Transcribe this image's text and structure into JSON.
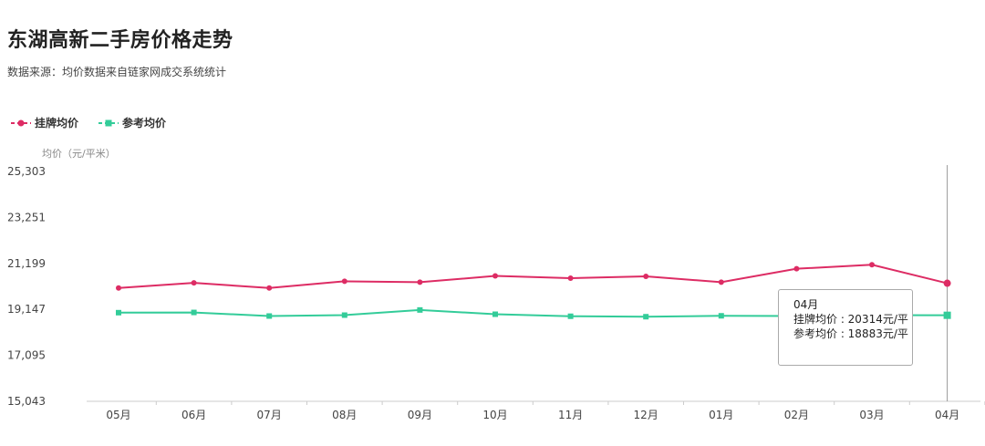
{
  "header": {
    "title": "东湖高新二手房价格走势",
    "subtitle": "数据来源：均价数据来自链家网成交系统统计"
  },
  "colors": {
    "listing": "#dd2c64",
    "reference": "#33cc99",
    "axis": "#cccccc",
    "crosshair": "#999999"
  },
  "chart_data": {
    "type": "line",
    "ylabel": "均价（元/平米）",
    "ylim": [
      15043,
      25303
    ],
    "yticks": [
      "15,043",
      "17,095",
      "19,147",
      "21,199",
      "23,251",
      "25,303"
    ],
    "categories": [
      "05月",
      "06月",
      "07月",
      "08月",
      "09月",
      "10月",
      "11月",
      "12月",
      "01月",
      "02月",
      "03月",
      "04月"
    ],
    "series": [
      {
        "name": "挂牌均价",
        "marker": "circle",
        "values": [
          20100,
          20330,
          20100,
          20400,
          20360,
          20640,
          20540,
          20620,
          20360,
          20960,
          21140,
          20314
        ]
      },
      {
        "name": "参考均价",
        "marker": "square",
        "values": [
          19000,
          19010,
          18850,
          18890,
          19120,
          18930,
          18840,
          18820,
          18860,
          18850,
          18890,
          18883
        ]
      }
    ],
    "legend_position": "top-left",
    "tooltip": {
      "title": "04月",
      "lines": [
        "挂牌均价 : 20314元/平",
        "参考均价 : 18883元/平"
      ]
    }
  }
}
